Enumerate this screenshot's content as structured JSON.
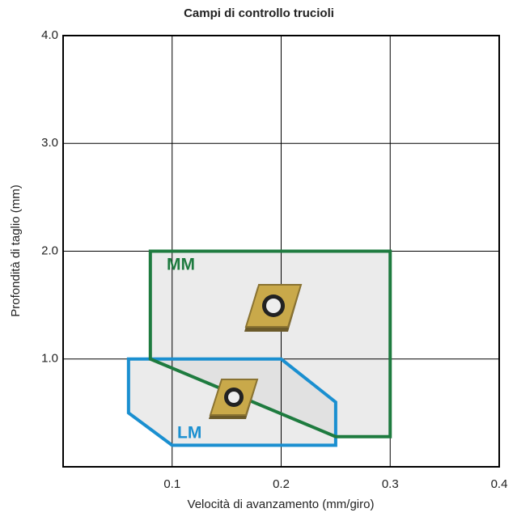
{
  "chart_data": {
    "type": "polygon",
    "title": "Campi di controllo trucioli",
    "x_label": "Velocità di avanzamento (mm/giro)",
    "y_label": "Profondità di taglio (mm)",
    "xlim": [
      0,
      0.4
    ],
    "ylim": [
      0,
      4
    ],
    "xticks": [
      0.1,
      0.2,
      0.3,
      0.4
    ],
    "yticks": [
      {
        "value": 1,
        "label": "1.0"
      },
      {
        "value": 2,
        "label": "2.0"
      },
      {
        "value": 3,
        "label": "3.0"
      },
      {
        "value": 4,
        "label": "4.0"
      }
    ],
    "grid": true,
    "series": [
      {
        "name": "LM",
        "color": "#1a8fd0",
        "x": [
          0.06,
          0.2,
          0.25,
          0.25,
          0.1,
          0.06
        ],
        "y": [
          1.0,
          1.0,
          0.6,
          0.2,
          0.2,
          0.5
        ]
      },
      {
        "name": "MM",
        "color": "#1e7b3f",
        "x": [
          0.08,
          0.3,
          0.3,
          0.25,
          0.08
        ],
        "y": [
          2.0,
          2.0,
          0.28,
          0.28,
          1.0
        ]
      }
    ]
  }
}
